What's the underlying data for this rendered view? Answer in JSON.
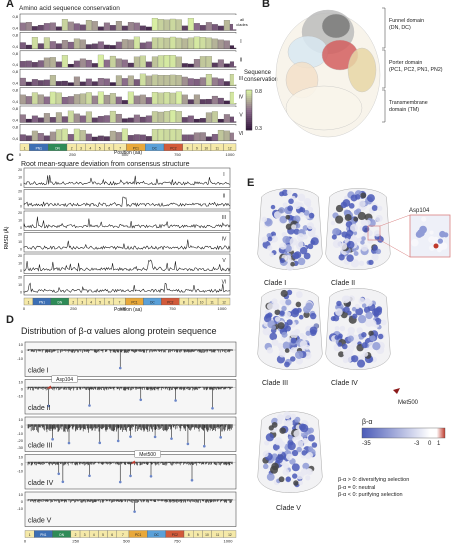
{
  "colors": {
    "conservation_low": "#2d1137",
    "conservation_mid": "#8a6a8a",
    "conservation_high": "#d9f0a3",
    "rmsd_line": "#111111",
    "beta_bar": "#222222",
    "beta_point": "#6a85c8",
    "beta_neg": "#4b5bb8",
    "beta_zero": "#ffffff",
    "beta_pos": "#c0392b",
    "domain_PN1": "#3c6fb4",
    "domain_DN": "#2e8b57",
    "domain_PC1": "#e8a83a",
    "domain_DC": "#5aa0d8",
    "domain_PC2": "#d25a3a",
    "domain_PN2": "#e7b84a",
    "domain_TM": "#f5e9a8"
  },
  "panel_a": {
    "label": "A",
    "title": "Amino acid sequence conservation",
    "y_tick_top": "0,8",
    "y_tick_bottom": "0,4",
    "x_label": "Position (aa)",
    "x_ticks": [
      "0",
      "250",
      "500",
      "750",
      "1000"
    ],
    "colorbar_title": "Sequence conservation",
    "colorbar_max": "0.8",
    "colorbar_min": "0.3",
    "clade_labels": [
      "all clades",
      "I",
      "II",
      "III",
      "IV",
      "V",
      "VI"
    ]
  },
  "panel_b": {
    "label": "B",
    "domains": [
      {
        "lines": [
          "Funnel domain",
          "(DN, DC)"
        ]
      },
      {
        "lines": [
          "Porter domain",
          "(PC1, PC2, PN1, PN2)"
        ]
      },
      {
        "lines": [
          "Transmembrane",
          "domain (TM)"
        ]
      }
    ]
  },
  "panel_c": {
    "label": "C",
    "title": "Root mean-square deviation from consensus structure",
    "y_axis_label": "RMSD (Å)",
    "y_ticks": [
      "20",
      "15",
      "10",
      "5",
      "0"
    ],
    "x_label": "Position (aa)",
    "x_ticks": [
      "0",
      "250",
      "500",
      "750",
      "1000"
    ],
    "clade_labels": [
      "I",
      "II",
      "III",
      "IV",
      "V",
      "VI"
    ]
  },
  "panel_d": {
    "label": "D",
    "title": "Distribution of β-α values along protein sequence",
    "y_ticks": [
      "10",
      "0",
      "-10",
      "-20",
      "-30"
    ],
    "clade_labels": [
      "clade I",
      "clade II",
      "clade III",
      "clade IV",
      "clade V"
    ],
    "annotations": [
      {
        "text": "Asp104"
      },
      {
        "text": "Met500"
      }
    ],
    "x_ticks": [
      "0",
      "250",
      "500",
      "750",
      "1000"
    ]
  },
  "domain_bar": {
    "segments": [
      {
        "label": "1",
        "color": "#f5e9a8"
      },
      {
        "label": "PN1",
        "color": "#3c6fb4"
      },
      {
        "label": "DN",
        "color": "#2e8b57"
      },
      {
        "label": "2",
        "color": "#f5e9a8"
      },
      {
        "label": "3",
        "color": "#f5e9a8"
      },
      {
        "label": "4",
        "color": "#f5e9a8"
      },
      {
        "label": "5",
        "color": "#f5e9a8"
      },
      {
        "label": "6",
        "color": "#f5e9a8"
      },
      {
        "label": "7",
        "color": "#f5e9a8"
      },
      {
        "label": "PC1",
        "color": "#e8a83a"
      },
      {
        "label": "DC",
        "color": "#5aa0d8"
      },
      {
        "label": "PC2",
        "color": "#d25a3a"
      },
      {
        "label": "8",
        "color": "#f5e9a8"
      },
      {
        "label": "9",
        "color": "#f5e9a8"
      },
      {
        "label": "10",
        "color": "#f5e9a8"
      },
      {
        "label": "11",
        "color": "#f5e9a8"
      },
      {
        "label": "12",
        "color": "#f5e9a8"
      }
    ]
  },
  "panel_e": {
    "label": "E",
    "clades": [
      "Clade I",
      "Clade II",
      "Clade III",
      "Clade IV",
      "Clade V"
    ],
    "inset_label": "Asp104",
    "met_label": "Met500",
    "legend_title": "β-α",
    "legend_min": "-35",
    "legend_zero": "-3",
    "legend_mid": "0",
    "legend_max": "1",
    "legend_lines": [
      "β-α > 0: diversifying selection",
      "β-α = 0: neutral",
      "β-α < 0: purifying selection"
    ]
  }
}
